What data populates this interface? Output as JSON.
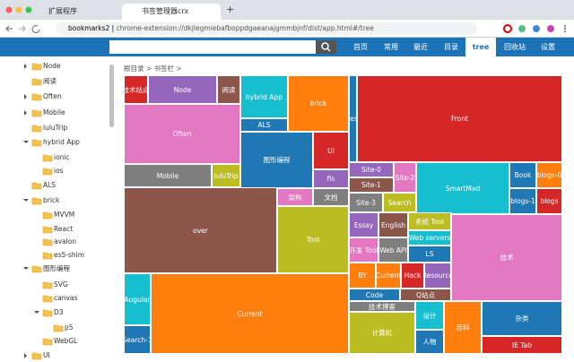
{
  "browser": {
    "tabs": [
      "扩展程序",
      "书签管理器crx"
    ],
    "new_tab": "+",
    "site_chip": "bookmarks2",
    "url": "chrome-extension://dkjlegmiebafboppdgaeanajgmmbjnf/dist/app.html#/tree"
  },
  "nav": {
    "items": [
      "首页",
      "常用",
      "最近",
      "目录",
      "tree",
      "回收站",
      "设置"
    ],
    "active": 4
  },
  "sidebar": {
    "items": [
      {
        "label": "Node",
        "depth": 0,
        "arrow": "right"
      },
      {
        "label": "阅读",
        "depth": 0,
        "arrow": "none"
      },
      {
        "label": "Often",
        "depth": 0,
        "arrow": "right"
      },
      {
        "label": "Mobile",
        "depth": 0,
        "arrow": "right"
      },
      {
        "label": "luluTrip",
        "depth": 0,
        "arrow": "none"
      },
      {
        "label": "hybrid App",
        "depth": 0,
        "arrow": "down"
      },
      {
        "label": "ionic",
        "depth": 1,
        "arrow": "none"
      },
      {
        "label": "ios",
        "depth": 1,
        "arrow": "none"
      },
      {
        "label": "ALS",
        "depth": 0,
        "arrow": "none"
      },
      {
        "label": "brick",
        "depth": 0,
        "arrow": "down"
      },
      {
        "label": "MVVM",
        "depth": 1,
        "arrow": "none"
      },
      {
        "label": "React",
        "depth": 1,
        "arrow": "none"
      },
      {
        "label": "avalon",
        "depth": 1,
        "arrow": "none"
      },
      {
        "label": "es5-shim",
        "depth": 1,
        "arrow": "none"
      },
      {
        "label": "图形编程",
        "depth": 0,
        "arrow": "down"
      },
      {
        "label": "SVG",
        "depth": 1,
        "arrow": "none"
      },
      {
        "label": "canvas",
        "depth": 1,
        "arrow": "none"
      },
      {
        "label": "D3",
        "depth": 1,
        "arrow": "down"
      },
      {
        "label": "p5",
        "depth": 2,
        "arrow": "none"
      },
      {
        "label": "WebGL",
        "depth": 1,
        "arrow": "none"
      },
      {
        "label": "UI",
        "depth": 0,
        "arrow": "right"
      }
    ]
  },
  "breadcrumb": "根目录 > 书签栏 >",
  "treemap": {
    "tiles": [
      {
        "label": "技术站点",
        "color": "#d62728"
      },
      {
        "label": "Node",
        "color": "#9467bd"
      },
      {
        "label": "阅读",
        "color": "#8c564b"
      },
      {
        "label": "Often",
        "color": "#e377c2"
      },
      {
        "label": "Mobile",
        "color": "#7f7f7f"
      },
      {
        "label": "luluTrip",
        "color": "#bcbd22"
      },
      {
        "label": "hybrid App",
        "color": "#17becf"
      },
      {
        "label": "ALS",
        "color": "#1f77b4"
      },
      {
        "label": "brick",
        "color": "#ff7f0e"
      },
      {
        "label": "Desk",
        "color": "#1f77b4"
      },
      {
        "label": "Front",
        "color": "#d62728"
      },
      {
        "label": "图形编程",
        "color": "#1f77b4"
      },
      {
        "label": "UI",
        "color": "#d62728"
      },
      {
        "label": "fis",
        "color": "#9467bd"
      },
      {
        "label": "架构",
        "color": "#e377c2"
      },
      {
        "label": "文档",
        "color": "#7f7f7f"
      },
      {
        "label": "over",
        "color": "#8c564b"
      },
      {
        "label": "Tool",
        "color": "#bcbd22"
      },
      {
        "label": "Augular",
        "color": "#17becf"
      },
      {
        "label": "Search-1",
        "color": "#1f77b4"
      },
      {
        "label": "Current",
        "color": "#ff7f0e"
      },
      {
        "label": "Site-0",
        "color": "#9467bd"
      },
      {
        "label": "Site-1",
        "color": "#8c564b"
      },
      {
        "label": "Site-2",
        "color": "#e377c2"
      },
      {
        "label": "Site-3",
        "color": "#7f7f7f"
      },
      {
        "label": "Search",
        "color": "#bcbd22"
      },
      {
        "label": "SmartMad",
        "color": "#17becf"
      },
      {
        "label": "Book",
        "color": "#1f77b4"
      },
      {
        "label": "blogs-0",
        "color": "#ff7f0e"
      },
      {
        "label": "blogs-1",
        "color": "#1f77b4"
      },
      {
        "label": "blogs",
        "color": "#d62728"
      },
      {
        "label": "Essay",
        "color": "#9467bd"
      },
      {
        "label": "English",
        "color": "#8c564b"
      },
      {
        "label": "系统 Tool",
        "color": "#bcbd22"
      },
      {
        "label": "Web servers",
        "color": "#17becf"
      },
      {
        "label": "LS",
        "color": "#1f77b4"
      },
      {
        "label": "开发 Tool",
        "color": "#e377c2"
      },
      {
        "label": "Web API",
        "color": "#7f7f7f"
      },
      {
        "label": "BY",
        "color": "#ff7f0e"
      },
      {
        "label": "Current",
        "color": "#ff7f0e"
      },
      {
        "label": "Hack",
        "color": "#d62728"
      },
      {
        "label": "Resource",
        "color": "#9467bd"
      },
      {
        "label": "Code",
        "color": "#1f77b4"
      },
      {
        "label": "Q站点",
        "color": "#8c564b"
      },
      {
        "label": "技术博客",
        "color": "#7f7f7f"
      },
      {
        "label": "计算机",
        "color": "#bcbd22"
      },
      {
        "label": "设计",
        "color": "#17becf"
      },
      {
        "label": "人物",
        "color": "#1f77b4"
      },
      {
        "label": "百科",
        "color": "#ff7f0e"
      },
      {
        "label": "技术",
        "color": "#e377c2"
      },
      {
        "label": "杂类",
        "color": "#1f77b4"
      },
      {
        "label": "IE Tab",
        "color": "#d62728"
      }
    ]
  }
}
